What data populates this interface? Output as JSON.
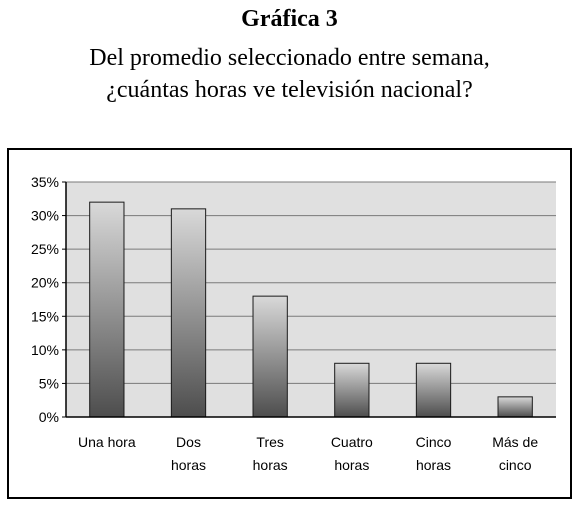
{
  "header": {
    "title": "Gráfica 3",
    "subtitle_line1": "Del promedio seleccionado entre semana,",
    "subtitle_line2": "¿cuántas horas ve televisión nacional?"
  },
  "chart_data": {
    "type": "bar",
    "categories": [
      [
        "Una hora"
      ],
      [
        "Dos",
        "horas"
      ],
      [
        "Tres",
        "horas"
      ],
      [
        "Cuatro",
        "horas"
      ],
      [
        "Cinco",
        "horas"
      ],
      [
        "Más de",
        "cinco"
      ]
    ],
    "values": [
      32,
      31,
      18,
      8,
      8,
      3
    ],
    "yticks": [
      "0%",
      "5%",
      "10%",
      "15%",
      "20%",
      "25%",
      "30%",
      "35%"
    ],
    "ylim": [
      0,
      35
    ],
    "grid": true,
    "legend": "none",
    "colors": {
      "plot_bg": "#e0e0e0",
      "grid": "#7a7a7a",
      "bar_dark": "#4d4d4d",
      "bar_light": "#d9d9d9",
      "frame": "#000000"
    }
  }
}
